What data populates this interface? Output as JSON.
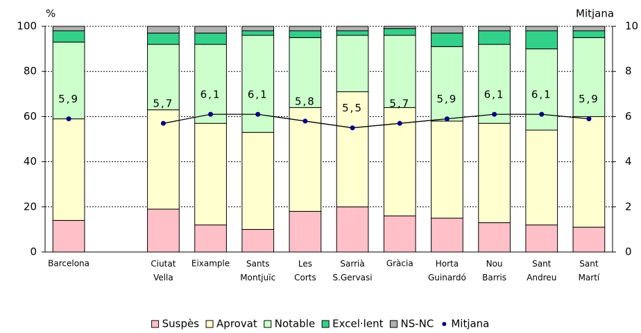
{
  "chart_data": {
    "type": "bar",
    "stacked": true,
    "y_label": "%",
    "y2_label": "Mitjana",
    "categories": [
      "Barcelona",
      null,
      "Ciutat Vella",
      "Eixample",
      "Sants Montjuïc",
      "Les Corts",
      "Sarrià S.Gervasi",
      "Gràcia",
      "Horta Guinardó",
      "Nou Barris",
      "Sant Andreu",
      "Sant Martí"
    ],
    "series": [
      {
        "name": "Suspès",
        "color": "#ffc0c8",
        "values": [
          14,
          null,
          19,
          12,
          10,
          18,
          20,
          16,
          15,
          13,
          12,
          11
        ]
      },
      {
        "name": "Aprovat",
        "color": "#ffffd0",
        "values": [
          45,
          null,
          44,
          45,
          43,
          46,
          51,
          48,
          43,
          44,
          42,
          49
        ]
      },
      {
        "name": "Notable",
        "color": "#ccffcc",
        "values": [
          34,
          null,
          29,
          35,
          43,
          31,
          25,
          32,
          33,
          35,
          36,
          35
        ]
      },
      {
        "name": "Excel·lent",
        "color": "#33d08a",
        "values": [
          5,
          null,
          5,
          5,
          2,
          3,
          2,
          3,
          6,
          6,
          8,
          3
        ]
      },
      {
        "name": "NS-NC",
        "color": "#b0b0b0",
        "values": [
          2,
          null,
          3,
          3,
          2,
          2,
          2,
          1,
          3,
          2,
          2,
          2
        ]
      },
      {
        "name": "Mitjana",
        "color": "#000080",
        "type": "line",
        "axis": "y2",
        "values": [
          5.9,
          null,
          5.7,
          6.1,
          6.1,
          5.8,
          5.5,
          5.7,
          5.9,
          6.1,
          6.1,
          5.9
        ],
        "value_labels": [
          "5,9",
          null,
          "5,7",
          "6,1",
          "6,1",
          "5,8",
          "5,5",
          "5,7",
          "5,9",
          "6,1",
          "6,1",
          "5,9"
        ]
      }
    ],
    "ylim": [
      0,
      100
    ],
    "yticks": [
      0,
      20,
      40,
      60,
      80,
      100
    ],
    "y2lim": [
      0,
      10
    ],
    "y2ticks": [
      0,
      2,
      4,
      6,
      8,
      10
    ],
    "grid": true,
    "legend": "bottom"
  }
}
